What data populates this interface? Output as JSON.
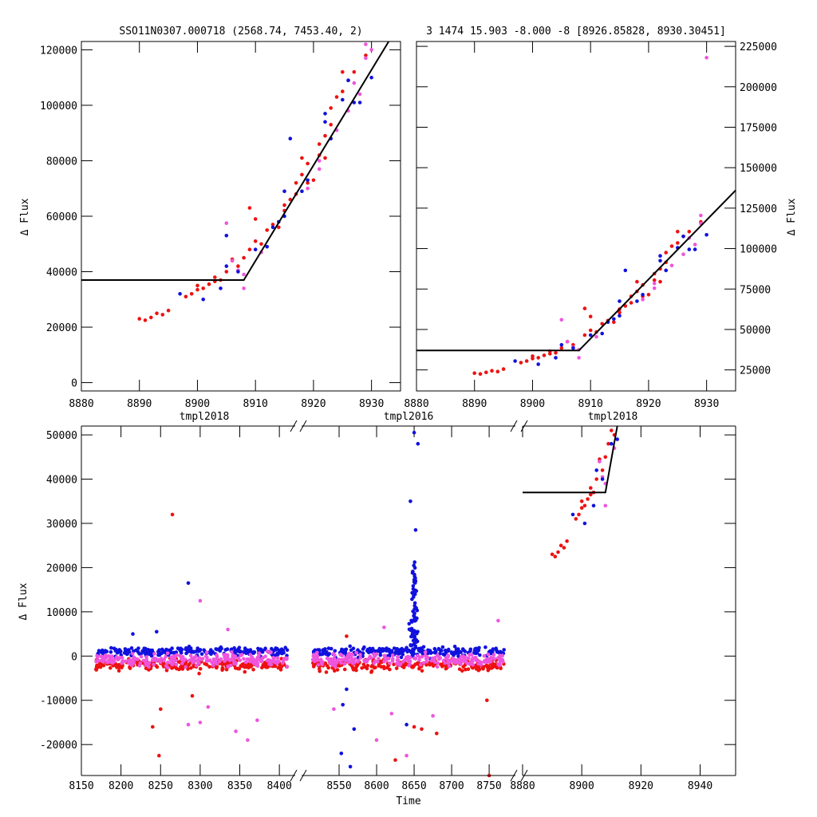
{
  "colors": {
    "red": "#ee1111",
    "blue": "#1111dd",
    "magenta": "#ee55dd",
    "fit": "#000000"
  },
  "chart_data": [
    {
      "id": "top_left",
      "type": "scatter",
      "title": "SSO11N0307.000718 (2568.74, 7453.40, 2)",
      "ylabel": "Δ Flux",
      "xlim": [
        8880,
        8935
      ],
      "ylim": [
        -3000,
        123000
      ],
      "xticks": [
        8880,
        8890,
        8900,
        8910,
        8920,
        8930
      ],
      "yticks": [
        0,
        20000,
        40000,
        60000,
        80000,
        100000,
        120000
      ],
      "fit": [
        [
          8880,
          37000
        ],
        [
          8908,
          37000
        ],
        [
          8935,
          130000
        ]
      ],
      "points": {
        "red": [
          [
            8890,
            23000
          ],
          [
            8891,
            22500
          ],
          [
            8892,
            23500
          ],
          [
            8893,
            25000
          ],
          [
            8894,
            24500
          ],
          [
            8895,
            26000
          ],
          [
            8898,
            31000
          ],
          [
            8899,
            32000
          ],
          [
            8900,
            33500
          ],
          [
            8900,
            35000
          ],
          [
            8901,
            34000
          ],
          [
            8902,
            35500
          ],
          [
            8903,
            36500
          ],
          [
            8903,
            38000
          ],
          [
            8904,
            37000
          ],
          [
            8905,
            40000
          ],
          [
            8906,
            44000
          ],
          [
            8907,
            42000
          ],
          [
            8909,
            48000
          ],
          [
            8909,
            63000
          ],
          [
            8910,
            59000
          ],
          [
            8910,
            51000
          ],
          [
            8911,
            50000
          ],
          [
            8912,
            55000
          ],
          [
            8913,
            57000
          ],
          [
            8914,
            56000
          ],
          [
            8915,
            62000
          ],
          [
            8915,
            64000
          ],
          [
            8916,
            66000
          ],
          [
            8917,
            68000
          ],
          [
            8917,
            72000
          ],
          [
            8918,
            75000
          ],
          [
            8918,
            81000
          ],
          [
            8919,
            72000
          ],
          [
            8919,
            79000
          ],
          [
            8920,
            73000
          ],
          [
            8921,
            82000
          ],
          [
            8921,
            86000
          ],
          [
            8922,
            81000
          ],
          [
            8922,
            89000
          ],
          [
            8923,
            93000
          ],
          [
            8923,
            99000
          ],
          [
            8924,
            103000
          ],
          [
            8925,
            105000
          ],
          [
            8925,
            112000
          ],
          [
            8926,
            109000
          ],
          [
            8927,
            112000
          ],
          [
            8929,
            118000
          ],
          [
            8906,
            44500
          ],
          [
            8908,
            45000
          ]
        ],
        "blue": [
          [
            8897,
            32000
          ],
          [
            8901,
            30000
          ],
          [
            8904,
            34000
          ],
          [
            8905,
            42000
          ],
          [
            8905,
            53000
          ],
          [
            8907,
            40000
          ],
          [
            8910,
            48000
          ],
          [
            8912,
            49000
          ],
          [
            8913,
            56000
          ],
          [
            8914,
            58000
          ],
          [
            8915,
            69000
          ],
          [
            8915,
            60000
          ],
          [
            8916,
            88000
          ],
          [
            8918,
            69000
          ],
          [
            8919,
            73000
          ],
          [
            8922,
            94000
          ],
          [
            8922,
            97000
          ],
          [
            8923,
            88000
          ],
          [
            8925,
            102000
          ],
          [
            8926,
            109000
          ],
          [
            8927,
            101000
          ],
          [
            8928,
            101000
          ],
          [
            8930,
            110000
          ]
        ],
        "magenta": [
          [
            8905,
            57500
          ],
          [
            8906,
            44000
          ],
          [
            8908,
            39000
          ],
          [
            8908,
            34000
          ],
          [
            8911,
            47000
          ],
          [
            8919,
            70000
          ],
          [
            8921,
            77000
          ],
          [
            8921,
            80000
          ],
          [
            8923,
            88000
          ],
          [
            8924,
            91000
          ],
          [
            8926,
            98000
          ],
          [
            8927,
            108000
          ],
          [
            8928,
            104000
          ],
          [
            8929,
            122000
          ],
          [
            8929,
            117000
          ],
          [
            8930,
            120000
          ],
          [
            8907,
            40500
          ]
        ]
      }
    },
    {
      "id": "top_right",
      "type": "scatter",
      "title": "3 1474 15.903 -8.000 -8 [8926.85828, 8930.30451]",
      "ylabel": "Δ Flux",
      "xlim": [
        8880,
        8935
      ],
      "ylim": [
        12000,
        228000
      ],
      "xticks": [
        8880,
        8890,
        8900,
        8910,
        8920,
        8930
      ],
      "yticks": [
        25000,
        50000,
        75000,
        100000,
        125000,
        150000,
        175000,
        200000,
        225000
      ],
      "fit": [
        [
          8880,
          37000
        ],
        [
          8908,
          37000
        ],
        [
          8935,
          136000
        ]
      ],
      "points": {
        "red": [
          [
            8890,
            23000
          ],
          [
            8891,
            22500
          ],
          [
            8892,
            23500
          ],
          [
            8893,
            24500
          ],
          [
            8894,
            24000
          ],
          [
            8895,
            25500
          ],
          [
            8898,
            29500
          ],
          [
            8899,
            30500
          ],
          [
            8900,
            32000
          ],
          [
            8900,
            33500
          ],
          [
            8901,
            32500
          ],
          [
            8902,
            34000
          ],
          [
            8903,
            35000
          ],
          [
            8903,
            36500
          ],
          [
            8904,
            35500
          ],
          [
            8905,
            38500
          ],
          [
            8906,
            42500
          ],
          [
            8907,
            40500
          ],
          [
            8909,
            46500
          ],
          [
            8909,
            63000
          ],
          [
            8910,
            58000
          ],
          [
            8910,
            49500
          ],
          [
            8911,
            48500
          ],
          [
            8912,
            53500
          ],
          [
            8913,
            55500
          ],
          [
            8914,
            54500
          ],
          [
            8915,
            60500
          ],
          [
            8915,
            62500
          ],
          [
            8916,
            64500
          ],
          [
            8917,
            66500
          ],
          [
            8917,
            70500
          ],
          [
            8918,
            73500
          ],
          [
            8918,
            79500
          ],
          [
            8919,
            70500
          ],
          [
            8919,
            77500
          ],
          [
            8920,
            71500
          ],
          [
            8921,
            80500
          ],
          [
            8921,
            84500
          ],
          [
            8922,
            79500
          ],
          [
            8922,
            87500
          ],
          [
            8923,
            91500
          ],
          [
            8923,
            97500
          ],
          [
            8924,
            101500
          ],
          [
            8925,
            103500
          ],
          [
            8925,
            110500
          ],
          [
            8926,
            107500
          ],
          [
            8927,
            110500
          ],
          [
            8929,
            116500
          ]
        ],
        "blue": [
          [
            8897,
            30500
          ],
          [
            8901,
            28500
          ],
          [
            8904,
            32500
          ],
          [
            8905,
            40500
          ],
          [
            8907,
            38500
          ],
          [
            8910,
            46500
          ],
          [
            8912,
            47500
          ],
          [
            8913,
            54500
          ],
          [
            8914,
            56500
          ],
          [
            8915,
            67500
          ],
          [
            8915,
            58500
          ],
          [
            8916,
            86500
          ],
          [
            8918,
            67500
          ],
          [
            8919,
            71500
          ],
          [
            8922,
            92500
          ],
          [
            8922,
            95500
          ],
          [
            8923,
            86500
          ],
          [
            8925,
            100500
          ],
          [
            8926,
            107500
          ],
          [
            8927,
            99500
          ],
          [
            8928,
            99500
          ],
          [
            8930,
            108500
          ]
        ],
        "magenta": [
          [
            8905,
            56000
          ],
          [
            8906,
            42500
          ],
          [
            8908,
            37500
          ],
          [
            8908,
            32500
          ],
          [
            8911,
            45500
          ],
          [
            8919,
            68500
          ],
          [
            8921,
            75500
          ],
          [
            8921,
            78500
          ],
          [
            8923,
            86500
          ],
          [
            8924,
            89500
          ],
          [
            8926,
            96500
          ],
          [
            8927,
            106500
          ],
          [
            8928,
            102500
          ],
          [
            8929,
            120500
          ],
          [
            8929,
            115500
          ],
          [
            8930,
            218000
          ],
          [
            8907,
            39000
          ]
        ]
      }
    },
    {
      "id": "bottom",
      "type": "scatter",
      "xlabel": "Time",
      "ylabel": "Δ Flux",
      "ylim": [
        -27000,
        52000
      ],
      "yticks": [
        -20000,
        -10000,
        0,
        10000,
        20000,
        30000,
        40000,
        50000
      ],
      "panels": [
        {
          "label": "tmpl2018",
          "xlim": [
            8150,
            8420
          ],
          "xticks": [
            8150,
            8200,
            8250,
            8300,
            8350,
            8400
          ],
          "cluster": [
            8168,
            8410
          ]
        },
        {
          "label": "tmpl2016",
          "xlim": [
            8500,
            8785
          ],
          "xticks": [
            8550,
            8600,
            8650,
            8700,
            8750
          ],
          "cluster": [
            8515,
            8770
          ],
          "flare": 8650
        },
        {
          "label": "tmpl2018",
          "xlim": [
            8880,
            8952
          ],
          "xticks": [
            8880,
            8900,
            8920,
            8940
          ],
          "fit": [
            [
              8880,
              37000
            ],
            [
              8908,
              37000
            ],
            [
              8912,
              52000
            ]
          ]
        }
      ],
      "outliers": {
        "red": [
          [
            8265,
            32000
          ],
          [
            8240,
            -16000
          ],
          [
            8248,
            -22500
          ],
          [
            8250,
            -12000
          ],
          [
            8290,
            -9000
          ],
          [
            8560,
            4500
          ],
          [
            8625,
            -23500
          ],
          [
            8650,
            -16000
          ],
          [
            8660,
            -16500
          ],
          [
            8680,
            -17500
          ],
          [
            8747,
            -10000
          ],
          [
            8750,
            -27000
          ]
        ],
        "blue": [
          [
            8285,
            16500
          ],
          [
            8215,
            5000
          ],
          [
            8245,
            5500
          ],
          [
            8650,
            50500
          ],
          [
            8655,
            48000
          ],
          [
            8645,
            35000
          ],
          [
            8652,
            28500
          ],
          [
            8553,
            -22000
          ],
          [
            8565,
            -25000
          ],
          [
            8570,
            -16500
          ],
          [
            8640,
            -15500
          ],
          [
            8555,
            -11000
          ],
          [
            8560,
            -7500
          ]
        ],
        "magenta": [
          [
            8300,
            12500
          ],
          [
            8335,
            6000
          ],
          [
            8285,
            -15500
          ],
          [
            8300,
            -15000
          ],
          [
            8310,
            -11500
          ],
          [
            8345,
            -17000
          ],
          [
            8360,
            -19000
          ],
          [
            8372,
            -14500
          ],
          [
            8543,
            -12000
          ],
          [
            8610,
            6500
          ],
          [
            8620,
            -13000
          ],
          [
            8640,
            -22500
          ],
          [
            8675,
            -13500
          ],
          [
            8762,
            8000
          ],
          [
            8600,
            -19000
          ]
        ]
      }
    }
  ]
}
